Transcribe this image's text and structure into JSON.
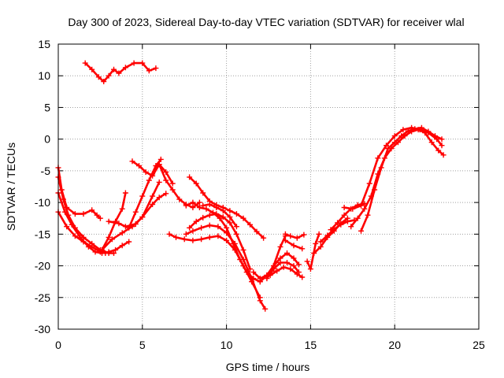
{
  "chart_data": {
    "type": "scatter",
    "title": "Day 300 of 2023, Sidereal Day-to-day VTEC variation (SDTVAR) for receiver wlal",
    "xlabel": "GPS time / hours",
    "ylabel": "SDTVAR / TECUs",
    "xlim": [
      0,
      25
    ],
    "ylim": [
      -30,
      15
    ],
    "xticks": [
      0,
      5,
      10,
      15,
      20,
      25
    ],
    "yticks": [
      -30,
      -25,
      -20,
      -15,
      -10,
      -5,
      0,
      5,
      10,
      15
    ],
    "grid": true,
    "marker": "plus",
    "color": "#ff0000",
    "series": [
      {
        "name": "arc-1",
        "x": [
          1.6,
          2.0,
          2.4,
          2.7,
          3.0,
          3.3,
          3.6,
          4.0,
          4.5,
          5.0,
          5.4,
          5.8
        ],
        "y": [
          12.0,
          11.0,
          9.8,
          9.1,
          10.0,
          11.0,
          10.4,
          11.3,
          12.0,
          12.0,
          10.8,
          11.2
        ]
      },
      {
        "name": "arc-2",
        "x": [
          0.0,
          0.2,
          0.5,
          1.0,
          1.5,
          2.0,
          2.3,
          2.5
        ],
        "y": [
          -4.5,
          -8.0,
          -10.8,
          -11.8,
          -11.8,
          -11.2,
          -12.0,
          -12.5
        ]
      },
      {
        "name": "arc-3",
        "x": [
          0.0,
          0.3,
          0.6,
          1.0,
          1.5,
          2.0,
          2.5,
          3.0,
          3.3
        ],
        "y": [
          -6.0,
          -9.5,
          -12.0,
          -14.0,
          -15.5,
          -16.5,
          -17.5,
          -18.0,
          -18.0
        ]
      },
      {
        "name": "arc-4",
        "x": [
          0.0,
          0.4,
          0.8,
          1.3,
          1.8,
          2.2,
          2.6,
          3.0,
          3.4,
          3.8,
          4.2
        ],
        "y": [
          -8.5,
          -11.5,
          -13.5,
          -15.5,
          -17.0,
          -17.8,
          -18.0,
          -17.8,
          -17.5,
          -16.8,
          -16.2
        ]
      },
      {
        "name": "arc-5",
        "x": [
          0.0,
          0.5,
          1.0,
          1.5,
          2.0,
          2.5,
          2.8
        ],
        "y": [
          -11.5,
          -13.8,
          -15.3,
          -16.2,
          -17.0,
          -17.8,
          -18.0
        ]
      },
      {
        "name": "arc-6",
        "x": [
          2.6,
          3.0,
          3.4,
          3.8,
          4.0
        ],
        "y": [
          -17.5,
          -15.5,
          -13.0,
          -11.0,
          -8.5
        ]
      },
      {
        "name": "arc-7",
        "x": [
          2.6,
          3.2,
          3.8,
          4.4,
          5.0,
          5.6,
          6.0,
          6.4
        ],
        "y": [
          -17.5,
          -15.8,
          -14.8,
          -13.8,
          -12.3,
          -10.3,
          -9.2,
          -8.6
        ]
      },
      {
        "name": "arc-8",
        "x": [
          3.0,
          3.6,
          4.0,
          4.6,
          5.0,
          5.6,
          6.0
        ],
        "y": [
          -13.0,
          -13.3,
          -13.8,
          -13.4,
          -12.3,
          -9.0,
          -6.8
        ]
      },
      {
        "name": "arc-9",
        "x": [
          4.2,
          4.6,
          5.0,
          5.4,
          5.8,
          6.1
        ],
        "y": [
          -14.0,
          -11.5,
          -9.0,
          -6.5,
          -4.2,
          -3.2
        ]
      },
      {
        "name": "arc-10",
        "x": [
          4.4,
          4.8,
          5.2,
          5.6,
          6.0,
          6.4,
          6.8
        ],
        "y": [
          -3.5,
          -4.2,
          -5.2,
          -5.8,
          -4.0,
          -5.2,
          -7.0
        ]
      },
      {
        "name": "arc-11",
        "x": [
          5.6,
          6.0,
          6.4,
          6.8,
          7.2,
          7.6,
          8.0,
          8.4
        ],
        "y": [
          -5.5,
          -4.0,
          -6.5,
          -8.0,
          -9.5,
          -10.3,
          -10.8,
          -10.0
        ]
      },
      {
        "name": "arc-12",
        "x": [
          7.6,
          8.0,
          8.4,
          8.8,
          9.2,
          9.6,
          10.0,
          10.4,
          10.8,
          11.2,
          11.6,
          12.0,
          12.4
        ],
        "y": [
          -10.5,
          -10.0,
          -10.8,
          -11.0,
          -11.6,
          -12.5,
          -14.0,
          -16.5,
          -19.0,
          -21.0,
          -22.0,
          -22.5,
          -21.5
        ]
      },
      {
        "name": "arc-13",
        "x": [
          7.8,
          8.2,
          8.6,
          9.0,
          9.4,
          9.8,
          10.2,
          10.6,
          11.0,
          11.4,
          11.8,
          12.2
        ],
        "y": [
          -6.0,
          -7.0,
          -8.5,
          -9.8,
          -10.4,
          -10.8,
          -11.3,
          -11.8,
          -12.5,
          -13.5,
          -14.6,
          -15.6
        ]
      },
      {
        "name": "arc-14",
        "x": [
          6.6,
          7.0,
          7.5,
          8.0,
          8.5,
          9.0,
          9.5,
          10.0,
          10.5,
          11.0,
          11.5,
          12.0
        ],
        "y": [
          -15.0,
          -15.5,
          -15.8,
          -16.0,
          -15.8,
          -15.5,
          -15.3,
          -16.0,
          -17.5,
          -20.0,
          -22.5,
          -25.0
        ]
      },
      {
        "name": "arc-15",
        "x": [
          7.6,
          8.0,
          8.5,
          9.0,
          9.5,
          10.0,
          10.5,
          11.0,
          11.5,
          12.0,
          12.3
        ],
        "y": [
          -15.0,
          -14.5,
          -14.0,
          -13.6,
          -13.8,
          -14.8,
          -16.5,
          -19.0,
          -22.0,
          -25.5,
          -26.8
        ]
      },
      {
        "name": "arc-16",
        "x": [
          7.8,
          8.2,
          8.6,
          9.0,
          9.4,
          9.8,
          10.2,
          10.6,
          11.0,
          11.4
        ],
        "y": [
          -14.0,
          -13.0,
          -12.4,
          -12.0,
          -11.8,
          -12.3,
          -13.2,
          -15.0,
          -17.5,
          -20.5
        ]
      },
      {
        "name": "arc-17",
        "x": [
          8.6,
          9.0,
          9.4,
          9.8,
          10.2,
          10.6
        ],
        "y": [
          -10.5,
          -10.3,
          -10.8,
          -11.3,
          -12.3,
          -13.8
        ]
      },
      {
        "name": "arc-18",
        "x": [
          11.6,
          12.0,
          12.4,
          12.8,
          13.2,
          13.5
        ],
        "y": [
          -21.0,
          -22.0,
          -21.5,
          -20.0,
          -17.0,
          -15.3
        ]
      },
      {
        "name": "arc-19",
        "x": [
          12.0,
          12.4,
          12.8,
          13.2,
          13.6,
          14.0,
          14.3
        ],
        "y": [
          -22.5,
          -21.5,
          -20.0,
          -18.8,
          -18.0,
          -18.8,
          -19.8
        ]
      },
      {
        "name": "arc-20",
        "x": [
          12.4,
          12.8,
          13.2,
          13.6,
          14.0,
          14.3
        ],
        "y": [
          -22.0,
          -20.5,
          -19.5,
          -19.5,
          -20.0,
          -21.0
        ]
      },
      {
        "name": "arc-21",
        "x": [
          12.6,
          13.0,
          13.4,
          13.8,
          14.2,
          14.5
        ],
        "y": [
          -21.5,
          -20.8,
          -20.2,
          -20.5,
          -21.3,
          -21.8
        ]
      },
      {
        "name": "arc-22",
        "x": [
          13.5,
          13.8,
          14.2,
          14.6
        ],
        "y": [
          -15.0,
          -15.3,
          -15.6,
          -15.1
        ]
      },
      {
        "name": "arc-23",
        "x": [
          13.5,
          14.0,
          14.5
        ],
        "y": [
          -16.0,
          -16.8,
          -17.3
        ]
      },
      {
        "name": "arc-24",
        "x": [
          14.8,
          15.0,
          15.3,
          15.5
        ],
        "y": [
          -19.3,
          -20.5,
          -16.5,
          -15.0
        ]
      },
      {
        "name": "arc-25",
        "x": [
          15.2,
          15.6,
          16.0,
          16.4,
          16.8,
          17.2
        ],
        "y": [
          -18.0,
          -17.0,
          -15.5,
          -14.5,
          -13.3,
          -12.5
        ]
      },
      {
        "name": "arc-26",
        "x": [
          15.6,
          16.0,
          16.4,
          16.8,
          17.2,
          17.6
        ],
        "y": [
          -16.2,
          -15.2,
          -14.2,
          -13.5,
          -13.0,
          -12.8
        ]
      },
      {
        "name": "arc-27",
        "x": [
          16.2,
          16.6,
          17.0,
          17.4,
          17.8,
          18.2
        ],
        "y": [
          -14.3,
          -13.2,
          -12.0,
          -11.0,
          -10.4,
          -10.2
        ]
      },
      {
        "name": "arc-28",
        "x": [
          17.0,
          17.5,
          18.0,
          18.5,
          19.0,
          19.5,
          20.0,
          20.5,
          21.0,
          21.5,
          22.0,
          22.5,
          22.8
        ],
        "y": [
          -10.8,
          -11.0,
          -10.5,
          -7.0,
          -3.0,
          -1.0,
          0.5,
          1.5,
          1.8,
          1.5,
          1.0,
          0.0,
          -1.0
        ]
      },
      {
        "name": "arc-29",
        "x": [
          17.4,
          17.8,
          18.2,
          18.6,
          19.0,
          19.4,
          19.8,
          20.2,
          20.6,
          21.0,
          21.4,
          21.8,
          22.2,
          22.6,
          22.9
        ],
        "y": [
          -13.8,
          -12.5,
          -11.0,
          -9.0,
          -5.5,
          -3.0,
          -1.5,
          -0.5,
          0.5,
          1.2,
          1.5,
          1.0,
          -0.5,
          -1.8,
          -2.5
        ]
      },
      {
        "name": "arc-30",
        "x": [
          18.0,
          18.4,
          18.8,
          19.2,
          19.6,
          20.0,
          20.4,
          20.8,
          21.2,
          21.6,
          22.0,
          22.4,
          22.8
        ],
        "y": [
          -14.5,
          -12.0,
          -8.0,
          -4.5,
          -1.5,
          -0.5,
          0.5,
          1.3,
          1.6,
          1.8,
          1.2,
          0.5,
          0.0
        ]
      }
    ]
  }
}
